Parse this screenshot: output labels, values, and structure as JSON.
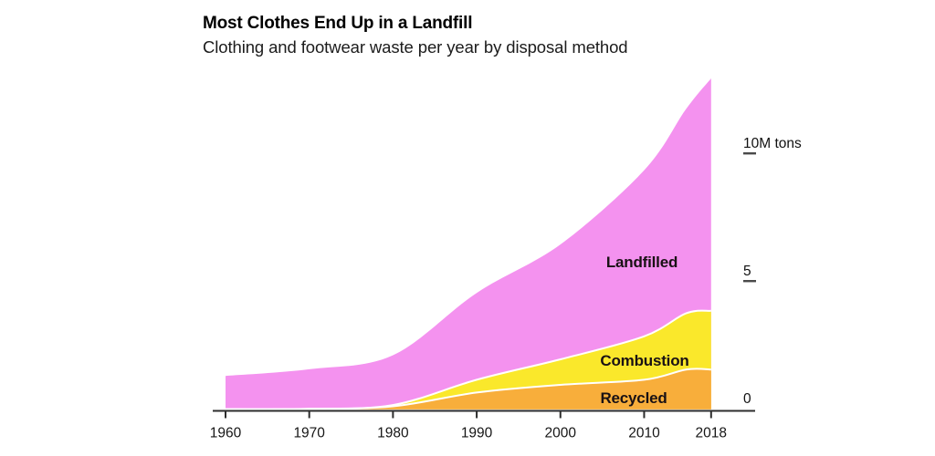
{
  "chart_data": {
    "type": "area",
    "stacked": true,
    "title": "Most Clothes End Up in a Landfill",
    "subtitle": "Clothing and footwear waste per year by disposal method",
    "x": [
      1960,
      1970,
      1980,
      1990,
      2000,
      2010,
      2015,
      2018
    ],
    "series": [
      {
        "name": "Recycled",
        "color": "#F8AE3B",
        "values": [
          0.05,
          0.06,
          0.16,
          0.7,
          1.0,
          1.2,
          1.6,
          1.6
        ]
      },
      {
        "name": "Combustion",
        "color": "#FAE82B",
        "values": [
          0,
          0,
          0.05,
          0.5,
          1.0,
          1.7,
          2.2,
          2.3
        ]
      },
      {
        "name": "Landfilled",
        "color": "#F492EF",
        "values": [
          1.3,
          1.55,
          1.95,
          3.4,
          4.5,
          6.5,
          8.0,
          9.1
        ]
      }
    ],
    "x_ticks": [
      {
        "year": 1960,
        "label": "1960"
      },
      {
        "year": 1970,
        "label": "1970"
      },
      {
        "year": 1980,
        "label": "1980"
      },
      {
        "year": 1990,
        "label": "1990"
      },
      {
        "year": 2000,
        "label": "2000"
      },
      {
        "year": 2010,
        "label": "2010"
      },
      {
        "year": 2018,
        "label": "2018"
      }
    ],
    "y_ticks": [
      {
        "value": 0,
        "label": "0",
        "dash": false
      },
      {
        "value": 5,
        "label": "5",
        "dash": true
      },
      {
        "value": 10,
        "label": "10M tons",
        "dash": true
      }
    ],
    "xlim": [
      1960,
      2018
    ],
    "ylim": [
      0,
      13
    ],
    "unit": "M tons",
    "legend": "inline-labels",
    "grid": false,
    "separator_color": "#ffffff",
    "axis_color": "#2d2d2d",
    "tick_text_color": "#161616"
  }
}
